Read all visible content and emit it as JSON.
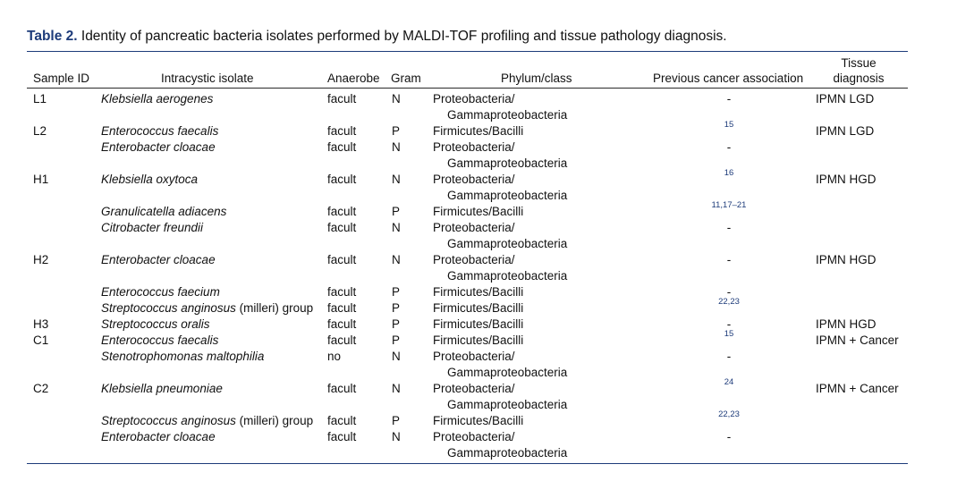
{
  "caption": {
    "label": "Table 2.",
    "text": " Identity of pancreatic bacteria isolates performed by MALDI-TOF profiling and tissue pathology diagnosis."
  },
  "headers": {
    "sample": "Sample ID",
    "isolate": "Intracystic isolate",
    "anaerobe": "Anaerobe",
    "gram": "Gram",
    "phylum": "Phylum/class",
    "previous": "Previous cancer association",
    "tissue_line1": "Tissue",
    "tissue_line2": "diagnosis"
  },
  "rows": [
    {
      "sample": "L1",
      "isolate": "Klebsiella aerogenes",
      "anaerobe": "facult",
      "gram": "N",
      "phylum1": "Proteobacteria/",
      "phylum2": "Gammaproteobacteria",
      "ref": "-",
      "diagnosis": "IPMN LGD"
    },
    {
      "sample": "L2",
      "isolate": "Enterococcus faecalis",
      "anaerobe": "facult",
      "gram": "P",
      "phylum1": "Firmicutes/Bacilli",
      "phylum2": "",
      "ref": "15",
      "diagnosis": "IPMN LGD"
    },
    {
      "sample": "",
      "isolate": "Enterobacter cloacae",
      "anaerobe": "facult",
      "gram": "N",
      "phylum1": "Proteobacteria/",
      "phylum2": "Gammaproteobacteria",
      "ref": "-",
      "diagnosis": ""
    },
    {
      "sample": "H1",
      "isolate": "Klebsiella oxytoca",
      "anaerobe": "facult",
      "gram": "N",
      "phylum1": "Proteobacteria/",
      "phylum2": "Gammaproteobacteria",
      "ref": "16",
      "diagnosis": "IPMN HGD"
    },
    {
      "sample": "",
      "isolate": "Granulicatella adiacens",
      "anaerobe": "facult",
      "gram": "P",
      "phylum1": "Firmicutes/Bacilli",
      "phylum2": "",
      "ref": "11,17–21",
      "diagnosis": ""
    },
    {
      "sample": "",
      "isolate": "Citrobacter freundii",
      "anaerobe": "facult",
      "gram": "N",
      "phylum1": "Proteobacteria/",
      "phylum2": "Gammaproteobacteria",
      "ref": "-",
      "diagnosis": ""
    },
    {
      "sample": "H2",
      "isolate": "Enterobacter cloacae",
      "anaerobe": "facult",
      "gram": "N",
      "phylum1": "Proteobacteria/",
      "phylum2": "Gammaproteobacteria",
      "ref": "-",
      "diagnosis": "IPMN HGD"
    },
    {
      "sample": "",
      "isolate": "Enterococcus faecium",
      "anaerobe": "facult",
      "gram": "P",
      "phylum1": "Firmicutes/Bacilli",
      "phylum2": "",
      "ref": "-",
      "diagnosis": ""
    },
    {
      "sample": "",
      "isolate": "Streptococcus anginosus",
      "isolate_plain": " (milleri) group",
      "anaerobe": "facult",
      "gram": "P",
      "phylum1": "Firmicutes/Bacilli",
      "phylum2": "",
      "ref": "22,23",
      "diagnosis": ""
    },
    {
      "sample": "H3",
      "isolate": "Streptococcus oralis",
      "anaerobe": "facult",
      "gram": "P",
      "phylum1": "Firmicutes/Bacilli",
      "phylum2": "",
      "ref": "-",
      "diagnosis": "IPMN HGD"
    },
    {
      "sample": "C1",
      "isolate": "Enterococcus faecalis",
      "anaerobe": "facult",
      "gram": "P",
      "phylum1": "Firmicutes/Bacilli",
      "phylum2": "",
      "ref": "15",
      "diagnosis": "IPMN + Cancer"
    },
    {
      "sample": "",
      "isolate": "Stenotrophomonas maltophilia",
      "anaerobe": "no",
      "gram": "N",
      "phylum1": "Proteobacteria/",
      "phylum2": "Gammaproteobacteria",
      "ref": "-",
      "diagnosis": ""
    },
    {
      "sample": "C2",
      "isolate": "Klebsiella pneumoniae",
      "anaerobe": "facult",
      "gram": "N",
      "phylum1": "Proteobacteria/",
      "phylum2": "Gammaproteobacteria",
      "ref": "24",
      "diagnosis": "IPMN + Cancer"
    },
    {
      "sample": "",
      "isolate": "Streptococcus anginosus",
      "isolate_plain": " (milleri) group",
      "anaerobe": "facult",
      "gram": "P",
      "phylum1": "Firmicutes/Bacilli",
      "phylum2": "",
      "ref": "22,23",
      "diagnosis": ""
    },
    {
      "sample": "",
      "isolate": "Enterobacter cloacae",
      "anaerobe": "facult",
      "gram": "N",
      "phylum1": "Proteobacteria/",
      "phylum2": "Gammaproteobacteria",
      "ref": "-",
      "diagnosis": ""
    }
  ]
}
